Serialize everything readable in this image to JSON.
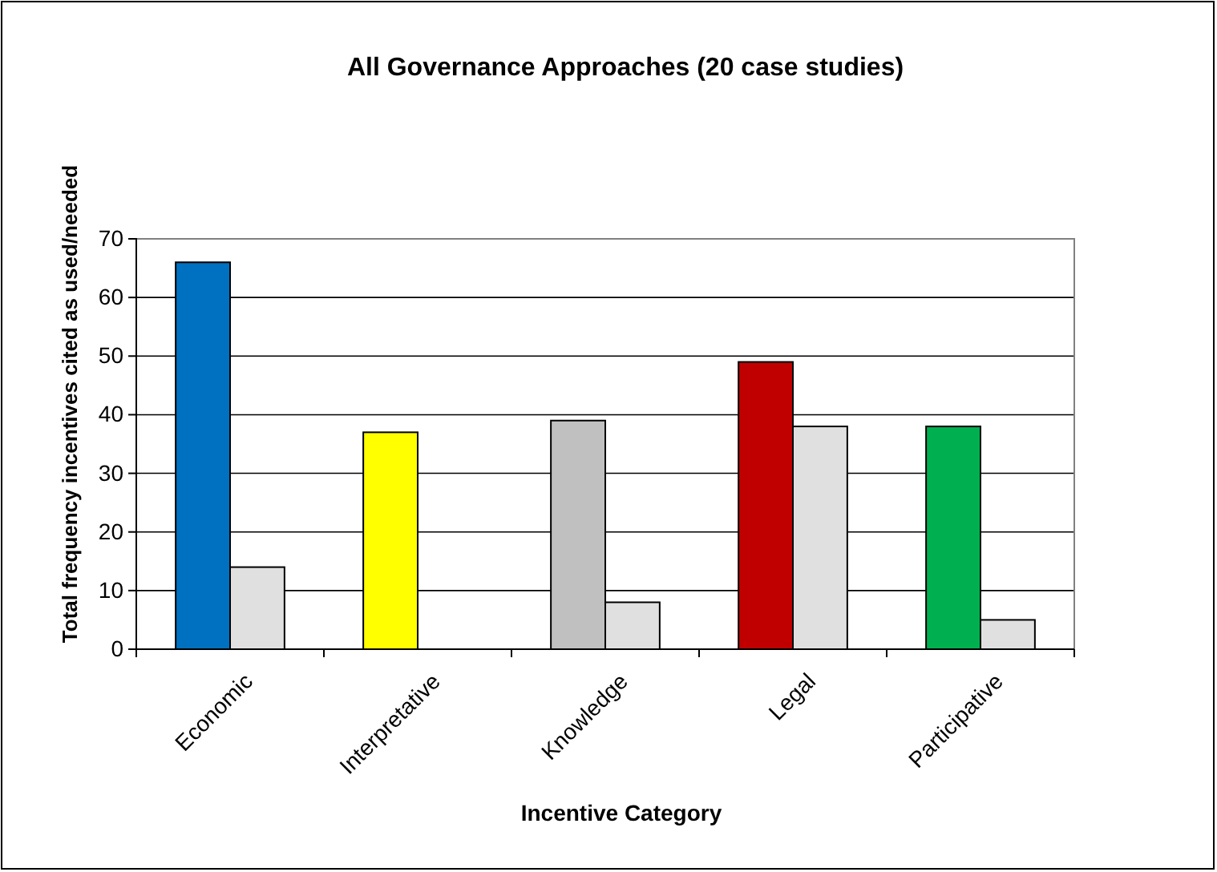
{
  "chart_data": {
    "type": "bar",
    "title": "All Governance Approaches (20 case studies)",
    "xlabel": "Incentive Category",
    "ylabel": "Total frequency incentives cited as used/needed",
    "categories": [
      "Economic",
      "Interpretative",
      "Knowledge",
      "Legal",
      "Participative"
    ],
    "series": [
      {
        "colors": [
          "#0070c0",
          "#ffff00",
          "#c0c0c0",
          "#c00000",
          "#00b050"
        ],
        "values": [
          66,
          37,
          39,
          49,
          38
        ]
      },
      {
        "color": "#e0e0e0",
        "values": [
          14,
          0,
          8,
          38,
          5
        ]
      }
    ],
    "ylim": [
      0,
      70
    ],
    "yticks": [
      0,
      10,
      20,
      30,
      40,
      50,
      60,
      70
    ],
    "grid": "y"
  }
}
